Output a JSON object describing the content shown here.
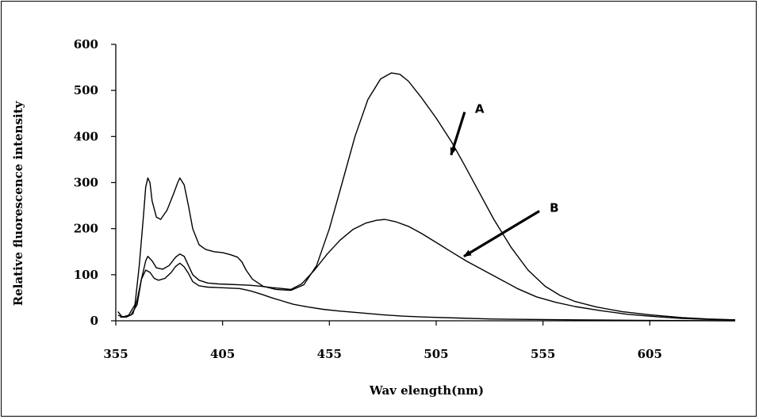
{
  "chart_data": {
    "type": "line",
    "title": "",
    "xlabel": "Wav elength(nm)",
    "ylabel": "Relative fluorescence intensity",
    "xlim": [
      355,
      645
    ],
    "ylim": [
      0,
      600
    ],
    "x_ticks": [
      355,
      405,
      455,
      505,
      555,
      605
    ],
    "y_ticks": [
      0,
      100,
      200,
      300,
      400,
      500,
      600
    ],
    "grid": false,
    "legend": "none",
    "colors": {
      "line": "#000000",
      "axis": "#000000",
      "background": "#ffffff"
    },
    "series": [
      {
        "label_key": "A",
        "points": [
          [
            356,
            20
          ],
          [
            358,
            8
          ],
          [
            361,
            12
          ],
          [
            364,
            35
          ],
          [
            366,
            120
          ],
          [
            368,
            230
          ],
          [
            369,
            290
          ],
          [
            370,
            310
          ],
          [
            371,
            300
          ],
          [
            372,
            260
          ],
          [
            374,
            225
          ],
          [
            376,
            220
          ],
          [
            379,
            240
          ],
          [
            382,
            275
          ],
          [
            384,
            300
          ],
          [
            385,
            310
          ],
          [
            387,
            295
          ],
          [
            389,
            250
          ],
          [
            391,
            200
          ],
          [
            394,
            165
          ],
          [
            397,
            155
          ],
          [
            401,
            150
          ],
          [
            405,
            148
          ],
          [
            409,
            143
          ],
          [
            412,
            138
          ],
          [
            414,
            128
          ],
          [
            416,
            110
          ],
          [
            419,
            90
          ],
          [
            424,
            75
          ],
          [
            430,
            68
          ],
          [
            437,
            66
          ],
          [
            443,
            78
          ],
          [
            449,
            120
          ],
          [
            455,
            200
          ],
          [
            461,
            300
          ],
          [
            467,
            400
          ],
          [
            473,
            480
          ],
          [
            479,
            525
          ],
          [
            484,
            538
          ],
          [
            488,
            535
          ],
          [
            492,
            520
          ],
          [
            498,
            485
          ],
          [
            505,
            440
          ],
          [
            512,
            390
          ],
          [
            518,
            340
          ],
          [
            525,
            280
          ],
          [
            532,
            220
          ],
          [
            540,
            160
          ],
          [
            548,
            110
          ],
          [
            556,
            75
          ],
          [
            563,
            55
          ],
          [
            570,
            42
          ],
          [
            580,
            30
          ],
          [
            592,
            20
          ],
          [
            605,
            13
          ],
          [
            620,
            7
          ],
          [
            632,
            4
          ],
          [
            645,
            2
          ]
        ]
      },
      {
        "label_key": "B",
        "points": [
          [
            356,
            12
          ],
          [
            359,
            8
          ],
          [
            362,
            12
          ],
          [
            365,
            35
          ],
          [
            367,
            90
          ],
          [
            369,
            130
          ],
          [
            370,
            140
          ],
          [
            372,
            130
          ],
          [
            374,
            115
          ],
          [
            377,
            112
          ],
          [
            380,
            120
          ],
          [
            383,
            138
          ],
          [
            385,
            145
          ],
          [
            387,
            140
          ],
          [
            389,
            120
          ],
          [
            391,
            100
          ],
          [
            394,
            88
          ],
          [
            398,
            82
          ],
          [
            403,
            80
          ],
          [
            408,
            79
          ],
          [
            413,
            78
          ],
          [
            418,
            77
          ],
          [
            423,
            75
          ],
          [
            428,
            72
          ],
          [
            433,
            70
          ],
          [
            437,
            68
          ],
          [
            442,
            80
          ],
          [
            448,
            110
          ],
          [
            454,
            145
          ],
          [
            460,
            175
          ],
          [
            466,
            198
          ],
          [
            472,
            212
          ],
          [
            477,
            218
          ],
          [
            481,
            220
          ],
          [
            486,
            215
          ],
          [
            492,
            205
          ],
          [
            498,
            190
          ],
          [
            505,
            170
          ],
          [
            512,
            150
          ],
          [
            519,
            130
          ],
          [
            527,
            110
          ],
          [
            535,
            90
          ],
          [
            543,
            70
          ],
          [
            552,
            52
          ],
          [
            561,
            40
          ],
          [
            570,
            31
          ],
          [
            582,
            22
          ],
          [
            595,
            14
          ],
          [
            608,
            9
          ],
          [
            620,
            5
          ],
          [
            633,
            3
          ],
          [
            645,
            2
          ]
        ]
      },
      {
        "label_key": "",
        "points": [
          [
            357,
            8
          ],
          [
            360,
            8
          ],
          [
            363,
            15
          ],
          [
            365,
            45
          ],
          [
            367,
            90
          ],
          [
            369,
            110
          ],
          [
            371,
            105
          ],
          [
            373,
            92
          ],
          [
            375,
            88
          ],
          [
            378,
            92
          ],
          [
            381,
            105
          ],
          [
            383,
            118
          ],
          [
            385,
            125
          ],
          [
            387,
            117
          ],
          [
            389,
            103
          ],
          [
            391,
            85
          ],
          [
            394,
            76
          ],
          [
            398,
            73
          ],
          [
            403,
            72
          ],
          [
            408,
            71
          ],
          [
            413,
            70
          ],
          [
            418,
            65
          ],
          [
            423,
            58
          ],
          [
            428,
            50
          ],
          [
            433,
            43
          ],
          [
            438,
            36
          ],
          [
            445,
            30
          ],
          [
            452,
            25
          ],
          [
            460,
            21
          ],
          [
            470,
            17
          ],
          [
            480,
            13
          ],
          [
            490,
            10
          ],
          [
            500,
            8
          ],
          [
            515,
            6
          ],
          [
            530,
            4
          ],
          [
            550,
            3
          ],
          [
            570,
            2
          ],
          [
            600,
            1
          ],
          [
            645,
            0
          ]
        ]
      }
    ],
    "annotations": [
      {
        "label": "A",
        "points_to_series": "A",
        "arrow_target": [
          512,
          360
        ],
        "label_at": [
          525,
          460
        ]
      },
      {
        "label": "B",
        "points_to_series": "B",
        "arrow_target": [
          518,
          140
        ],
        "label_at": [
          560,
          245
        ]
      }
    ]
  }
}
